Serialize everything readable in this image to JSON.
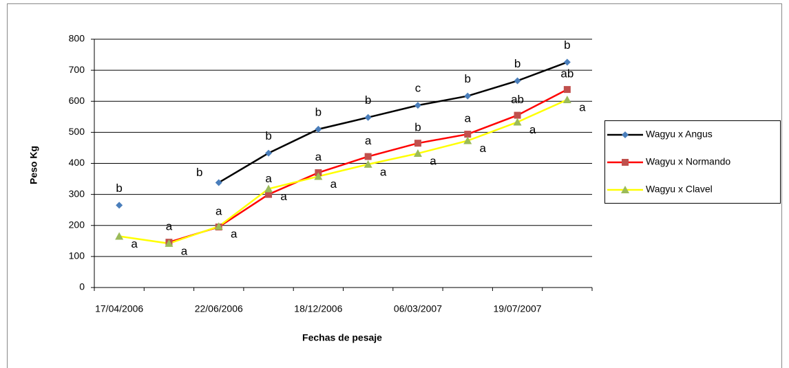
{
  "chart_data": {
    "type": "line",
    "ylabel": "Peso Kg",
    "xlabel": "Fechas de pesaje",
    "categories": [
      "17/04/2006",
      null,
      "22/06/2006",
      null,
      "18/12/2006",
      null,
      "06/03/2007",
      null,
      "19/07/2007",
      null
    ],
    "ylim": [
      0,
      800
    ],
    "yticks": [
      0,
      100,
      200,
      300,
      400,
      500,
      600,
      700,
      800
    ],
    "grid": true,
    "legend": "right",
    "series": [
      {
        "name": "Wagyu x Angus",
        "color": "#000000",
        "marker_color": "#4a7ebb",
        "marker": "diamond",
        "values": [
          265,
          null,
          338,
          433,
          510,
          548,
          587,
          617,
          666,
          726
        ],
        "letters": [
          "b",
          null,
          "b",
          "b",
          "b",
          "b",
          "c",
          "b",
          "b",
          "b"
        ]
      },
      {
        "name": "Wagyu x Normando",
        "color": "#ff0000",
        "marker_color": "#c0504d",
        "marker": "square",
        "values": [
          null,
          146,
          195,
          300,
          370,
          422,
          465,
          494,
          555,
          638
        ],
        "letters": [
          null,
          "a",
          "a",
          "a",
          "a",
          "a",
          "b",
          "a",
          "ab",
          "ab"
        ]
      },
      {
        "name": "Wagyu x Clavel",
        "color": "#ffff00",
        "marker_color": "#9bbb59",
        "marker": "triangle",
        "values": [
          165,
          142,
          197,
          318,
          358,
          397,
          432,
          473,
          533,
          605
        ],
        "letters": [
          "a",
          "a",
          "a",
          "a",
          "a",
          "a",
          "a",
          "a",
          "a",
          "a"
        ]
      }
    ]
  }
}
